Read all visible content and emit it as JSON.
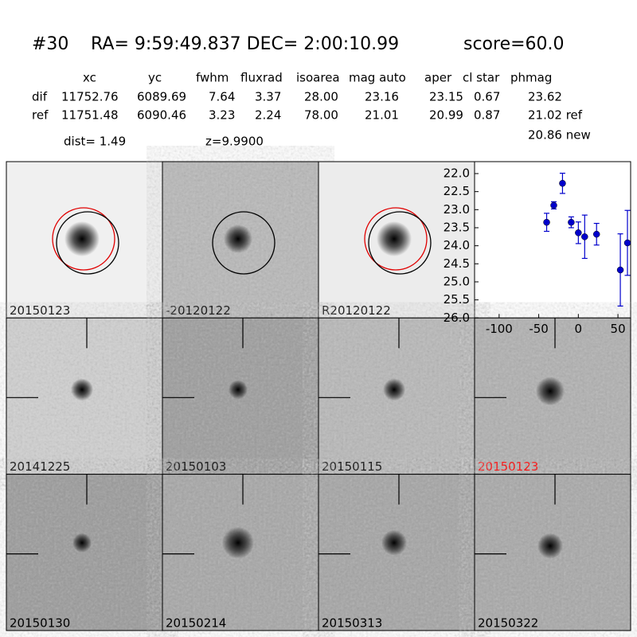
{
  "header": {
    "id": "#30",
    "coords": "RA= 9:59:49.837 DEC= 2:00:10.99",
    "score": "score=60.0"
  },
  "table": {
    "columns": [
      "xc",
      "yc",
      "fwhm",
      "fluxrad",
      "isoarea",
      "mag auto",
      "aper",
      "cl star",
      "phmag"
    ],
    "rows": [
      [
        "dif",
        "11752.76",
        "6089.69",
        "7.64",
        "3.37",
        "28.00",
        "23.16",
        "23.15",
        "0.67",
        "23.62"
      ],
      [
        "ref",
        "11751.48",
        "6090.46",
        "3.23",
        "2.24",
        "78.00",
        "21.01",
        "20.99",
        "0.87",
        "21.02 ref"
      ]
    ],
    "extra": "20.86 new"
  },
  "dist": "dist=  1.49",
  "z": "z=9.9900",
  "panels": [
    "20150123",
    "-20120122",
    "R20120122",
    "20141225",
    "20150103",
    "20150115",
    "20150123",
    "20150130",
    "20150214",
    "20150313",
    "20150322"
  ],
  "highlight_panel_color": "#ff0000",
  "chart_data": {
    "type": "scatter",
    "x": [
      -40,
      -31,
      -20,
      -9,
      0,
      8,
      23,
      53,
      62
    ],
    "series": [
      {
        "color": "#0000cc",
        "values": [
          23.35,
          22.88,
          22.27,
          23.35,
          23.64,
          23.75,
          23.68,
          24.67,
          23.92
        ],
        "errors": [
          0.25,
          0.1,
          0.28,
          0.15,
          0.3,
          0.6,
          0.3,
          1.0,
          0.9
        ]
      }
    ],
    "xlim": [
      -131,
      66
    ],
    "ylim": [
      22.0,
      26.0
    ],
    "invert_y": true,
    "xticks": [
      -100,
      -50,
      0,
      50
    ],
    "yticks": [
      {
        "value": 22,
        "label": "22.0"
      },
      22.5,
      {
        "value": 23,
        "label": "23.0"
      },
      23.5,
      {
        "value": 24,
        "label": "24.0"
      },
      24.5,
      {
        "value": 25,
        "label": "25.0"
      },
      25.5,
      {
        "value": 26,
        "label": "26.0"
      }
    ]
  }
}
